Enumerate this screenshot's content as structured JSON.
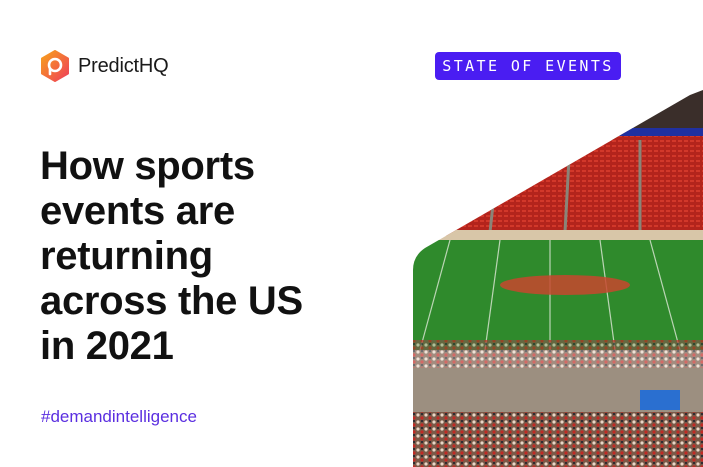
{
  "brand": {
    "name": "PredictHQ",
    "logo_colors": [
      "#f7a21b",
      "#ef3e5a"
    ]
  },
  "badge": {
    "label": "STATE OF EVENTS",
    "color": "#4a1df2"
  },
  "headline": {
    "lines": [
      "How sports",
      "events are",
      "returning",
      "across the US",
      "in 2021"
    ]
  },
  "hashtag": "#demandintelligence",
  "image": {
    "subject": "stadium-photo"
  }
}
